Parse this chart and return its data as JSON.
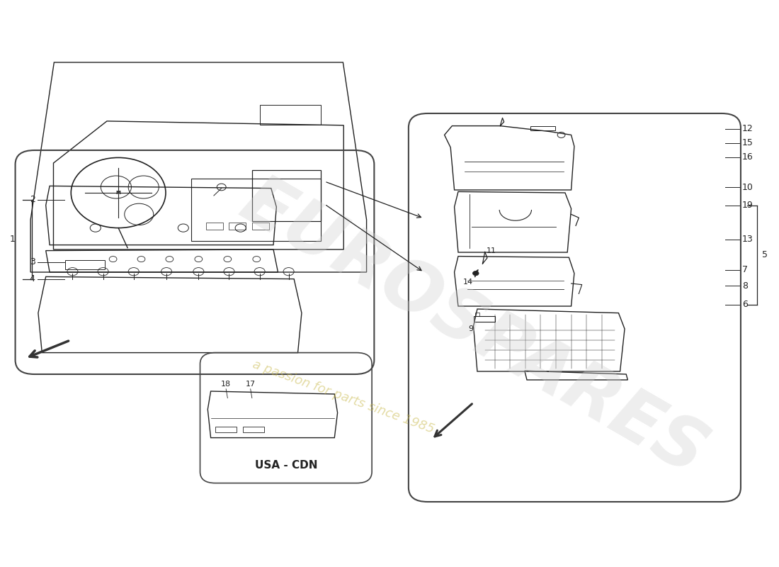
{
  "background_color": "#ffffff",
  "watermark_text": "a passion for parts since 1985",
  "watermark_color": "#c8b84a",
  "watermark_alpha": 0.5,
  "brand_text": "EUROSPARES",
  "brand_color": "#d0d0d0",
  "brand_alpha": 0.35,
  "usa_cdn_label": "USA - CDN",
  "line_color": "#222222",
  "box_line_color": "#444444",
  "arrow_color": "#333333"
}
